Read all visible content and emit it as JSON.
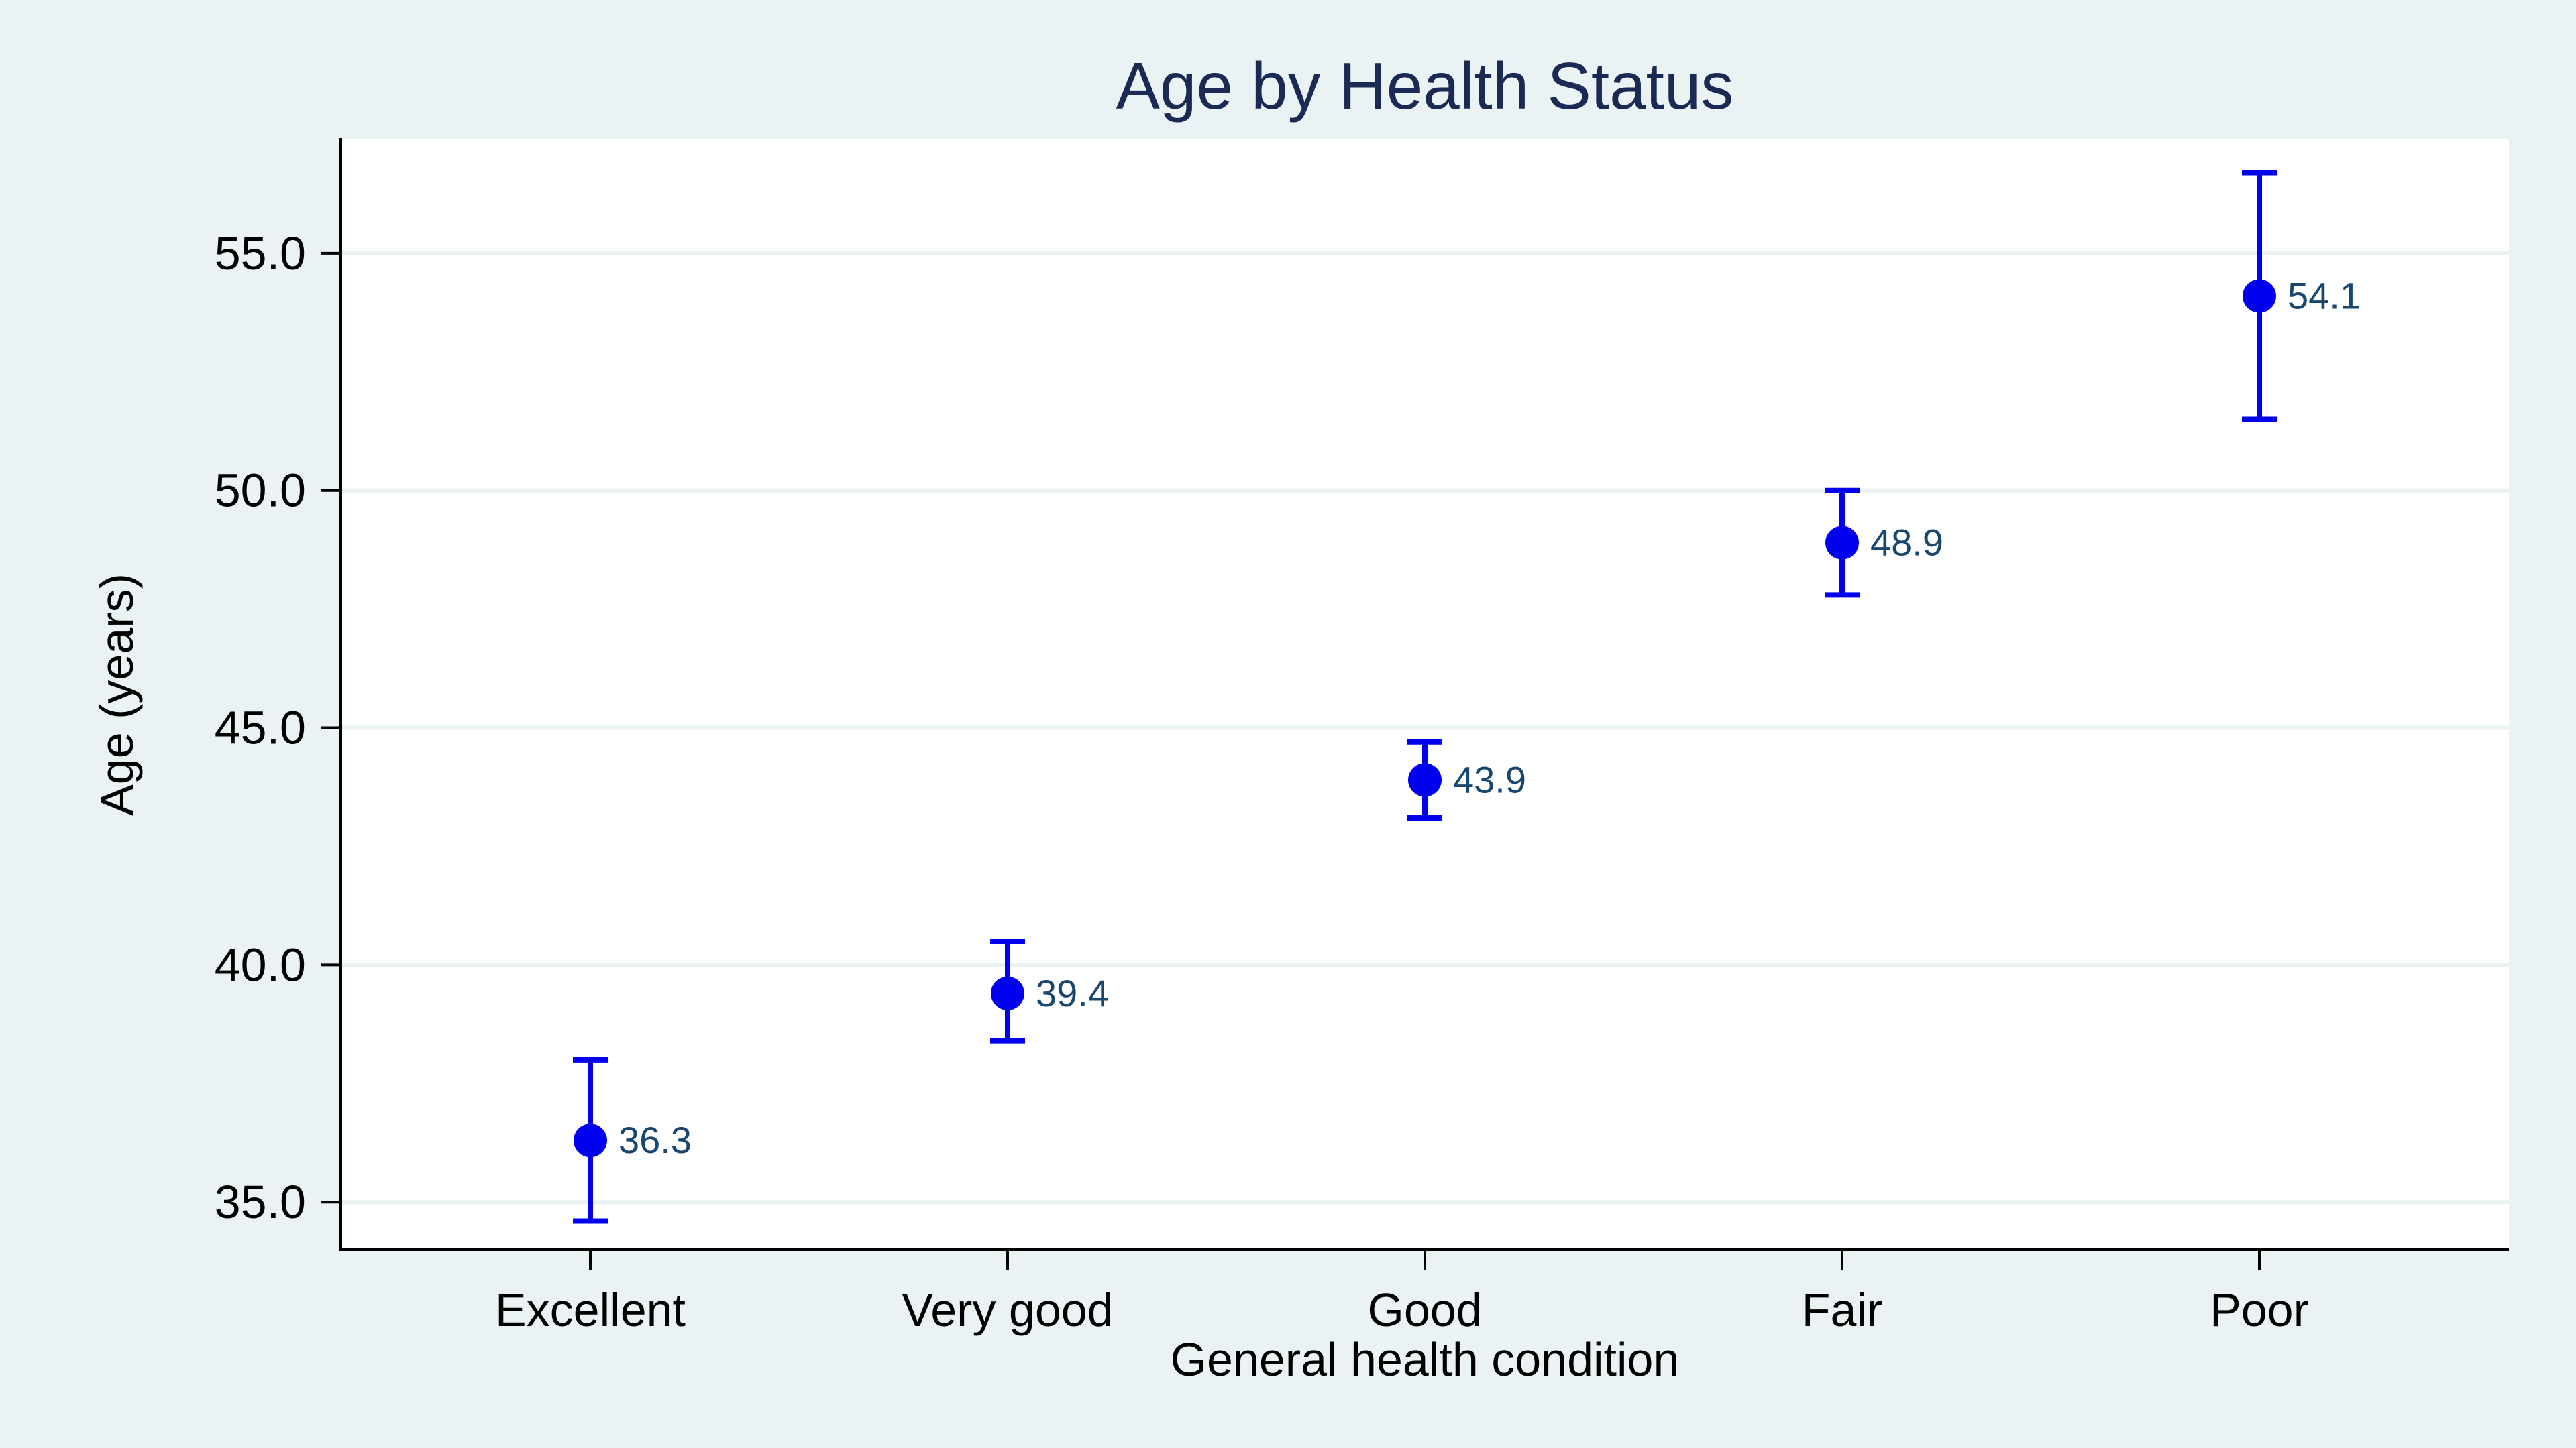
{
  "chart_data": {
    "type": "scatter",
    "title": "Age by Health Status",
    "xlabel": "General health condition",
    "ylabel": "Age (years)",
    "categories": [
      "Excellent",
      "Very good",
      "Good",
      "Fair",
      "Poor"
    ],
    "values": [
      36.3,
      39.4,
      43.9,
      48.9,
      54.1
    ],
    "ci_lower": [
      34.6,
      38.4,
      43.1,
      47.8,
      51.5
    ],
    "ci_upper": [
      38.0,
      40.5,
      44.7,
      50.0,
      56.7
    ],
    "value_labels": [
      "36.3",
      "39.4",
      "43.9",
      "48.9",
      "54.1"
    ],
    "yticks": [
      35,
      40,
      45,
      50,
      55
    ],
    "ytick_labels": [
      "35.0",
      "40.0",
      "45.0",
      "50.0",
      "55.0"
    ],
    "ylim": [
      34.0,
      57.4
    ],
    "grid": true,
    "colors": {
      "marker": "#0000ee",
      "errorbar": "#0000ee",
      "value_label": "#1a476f",
      "title": "#1a2a55",
      "background": "#eaf2f3",
      "plot_background": "#ffffff",
      "gridline": "#eaf2f3"
    }
  }
}
